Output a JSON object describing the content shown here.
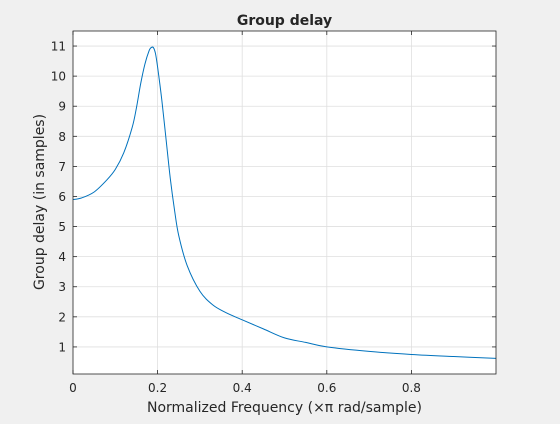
{
  "chart_data": {
    "type": "line",
    "title": "Group delay",
    "xlabel": "Normalized Frequency (×π rad/sample)",
    "ylabel": "Group delay (in samples)",
    "xlim": [
      0,
      1
    ],
    "ylim": [
      0.1,
      11.5
    ],
    "x_ticks": [
      "0",
      "0.2",
      "0.4",
      "0.6",
      "0.8"
    ],
    "x_tick_values": [
      0,
      0.2,
      0.4,
      0.6,
      0.8
    ],
    "y_ticks": [
      "1",
      "2",
      "3",
      "4",
      "5",
      "6",
      "7",
      "8",
      "9",
      "10",
      "11"
    ],
    "y_tick_values": [
      1,
      2,
      3,
      4,
      5,
      6,
      7,
      8,
      9,
      10,
      11
    ],
    "grid": true,
    "line_color": "#0072bd",
    "series": [
      {
        "x": [
          0,
          0.02,
          0.05,
          0.08,
          0.1,
          0.12,
          0.14,
          0.15,
          0.16,
          0.17,
          0.18,
          0.185,
          0.19,
          0.195,
          0.2,
          0.21,
          0.22,
          0.23,
          0.24,
          0.25,
          0.27,
          0.3,
          0.33,
          0.36,
          0.4,
          0.45,
          0.5,
          0.55,
          0.6,
          0.7,
          0.8,
          0.9,
          1.0
        ],
        "y": [
          5.9,
          5.95,
          6.15,
          6.55,
          6.9,
          7.45,
          8.3,
          8.95,
          9.75,
          10.4,
          10.85,
          10.95,
          10.95,
          10.75,
          10.3,
          9.2,
          7.9,
          6.6,
          5.55,
          4.7,
          3.7,
          2.85,
          2.4,
          2.15,
          1.9,
          1.6,
          1.3,
          1.15,
          1.0,
          0.85,
          0.75,
          0.68,
          0.62
        ]
      }
    ]
  }
}
